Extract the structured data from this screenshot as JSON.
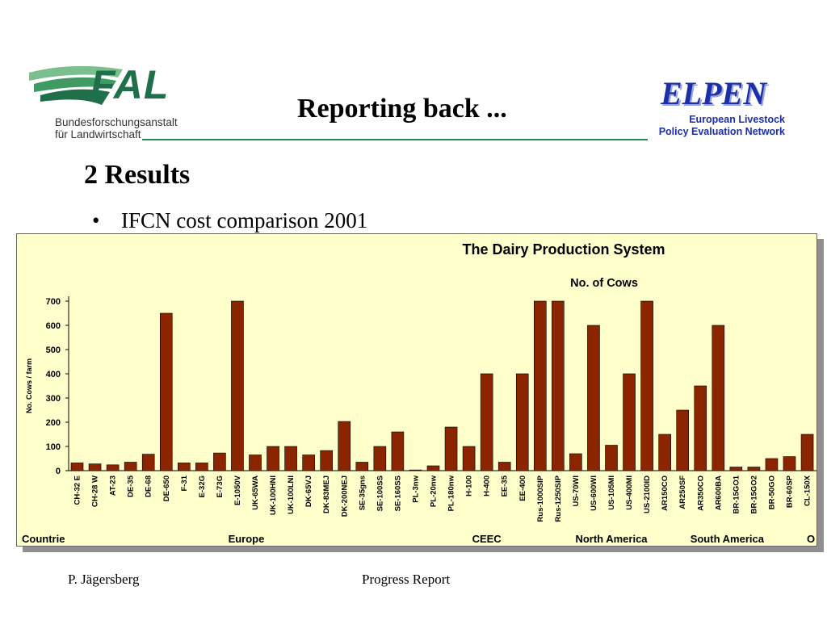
{
  "header": {
    "logo_left": {
      "name": "FAL",
      "line1": "Bundesforschungsanstalt",
      "line2": "für Landwirtschaft"
    },
    "title": "Reporting back ...",
    "logo_right": {
      "name": "ELPEN",
      "line1": "European Livestock",
      "line2": "Policy Evaluation Network"
    }
  },
  "section_heading": "2 Results",
  "bullet": "IFCN cost comparison 2001",
  "footer": {
    "author": "P. Jägersberg",
    "center": "Progress Report"
  },
  "colors": {
    "bar": "#8b2500",
    "background": "#ffffcc",
    "accent": "#2e8b57",
    "elpen": "#1c2fa8"
  },
  "chart_data": {
    "type": "bar",
    "title": "The Dairy Production System",
    "subtitle": "No. of Cows",
    "ylabel": "No. Cows /  farm",
    "xlabel": "",
    "ylim": [
      0,
      700
    ],
    "yticks": [
      0,
      100,
      200,
      300,
      400,
      500,
      600,
      700
    ],
    "grid": false,
    "categories": [
      "CH-32 E",
      "CH-28 W",
      "AT-23",
      "DE-35",
      "DE-68",
      "DE-650",
      "F-31",
      "E-32G",
      "E-73G",
      "E-1050V",
      "UK-65WA",
      "UK-100HNI",
      "UK-100LNI",
      "DK-65VJ",
      "DK-83MEJ",
      "DK-200NEJ",
      "SE-35gns",
      "SE-100SS",
      "SE-160SS",
      "PL-3nw",
      "PL-20nw",
      "PL-180nw",
      "H-100",
      "H-400",
      "EE-35",
      "EE-400",
      "Rus-1000SIP",
      "Rus-1250SIP",
      "US-70WI",
      "US-600WI",
      "US-105MI",
      "US-400MI",
      "US-2100ID",
      "AR150CO",
      "AR250SF",
      "AR350CO",
      "AR600BA",
      "BR-15GO1",
      "BR-15GO2",
      "BR-50GO",
      "BR-60SP",
      "CL-150X"
    ],
    "values": [
      32,
      28,
      24,
      35,
      68,
      650,
      32,
      32,
      73,
      710,
      65,
      100,
      100,
      65,
      83,
      203,
      35,
      100,
      160,
      3,
      20,
      180,
      100,
      400,
      35,
      400,
      710,
      710,
      70,
      600,
      105,
      400,
      710,
      150,
      250,
      350,
      600,
      15,
      15,
      50,
      58,
      150
    ],
    "groups": [
      {
        "label": "Countrie",
        "from": 0,
        "to": 0
      },
      {
        "label": "Europe",
        "from": 1,
        "to": 18
      },
      {
        "label": "CEEC",
        "from": 19,
        "to": 27
      },
      {
        "label": "North America",
        "from": 28,
        "to": 32
      },
      {
        "label": "South America",
        "from": 33,
        "to": 40
      },
      {
        "label": "O",
        "from": 41,
        "to": 41
      }
    ]
  }
}
